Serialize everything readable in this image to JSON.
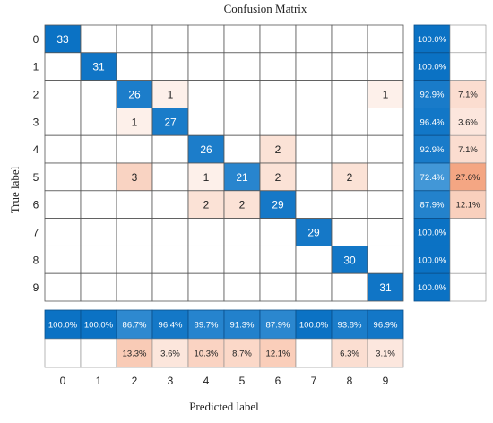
{
  "chart_data": {
    "type": "heatmap",
    "title": "Confusion Matrix",
    "xlabel": "Predicted label",
    "ylabel": "True label",
    "classes": [
      "0",
      "1",
      "2",
      "3",
      "4",
      "5",
      "6",
      "7",
      "8",
      "9"
    ],
    "matrix": [
      [
        33,
        0,
        0,
        0,
        0,
        0,
        0,
        0,
        0,
        0
      ],
      [
        0,
        31,
        0,
        0,
        0,
        0,
        0,
        0,
        0,
        0
      ],
      [
        0,
        0,
        26,
        1,
        0,
        0,
        0,
        0,
        0,
        1
      ],
      [
        0,
        0,
        1,
        27,
        0,
        0,
        0,
        0,
        0,
        0
      ],
      [
        0,
        0,
        0,
        0,
        26,
        0,
        2,
        0,
        0,
        0
      ],
      [
        0,
        0,
        3,
        0,
        1,
        21,
        2,
        0,
        2,
        0
      ],
      [
        0,
        0,
        0,
        0,
        2,
        2,
        29,
        0,
        0,
        0
      ],
      [
        0,
        0,
        0,
        0,
        0,
        0,
        0,
        29,
        0,
        0
      ],
      [
        0,
        0,
        0,
        0,
        0,
        0,
        0,
        0,
        30,
        0
      ],
      [
        0,
        0,
        0,
        0,
        0,
        0,
        0,
        0,
        0,
        31
      ]
    ],
    "row_summary": {
      "correct": [
        "100.0%",
        "100.0%",
        "92.9%",
        "96.4%",
        "92.9%",
        "72.4%",
        "87.9%",
        "100.0%",
        "100.0%",
        "100.0%"
      ],
      "incorrect": [
        "",
        "",
        "7.1%",
        "3.6%",
        "7.1%",
        "27.6%",
        "12.1%",
        "",
        "",
        ""
      ]
    },
    "column_summary": {
      "correct": [
        "100.0%",
        "100.0%",
        "86.7%",
        "96.4%",
        "89.7%",
        "91.3%",
        "87.9%",
        "100.0%",
        "93.8%",
        "96.9%"
      ],
      "incorrect": [
        "",
        "",
        "13.3%",
        "3.6%",
        "10.3%",
        "8.7%",
        "12.1%",
        "",
        "6.3%",
        "3.1%"
      ]
    },
    "colors": {
      "correct_high": "#0b72c4",
      "correct_low": "#5aa7e0",
      "error_high": "#f4a582",
      "error_low": "#fdf0ea",
      "grid": "#555555",
      "summary_border": "#0b4f8a"
    }
  }
}
